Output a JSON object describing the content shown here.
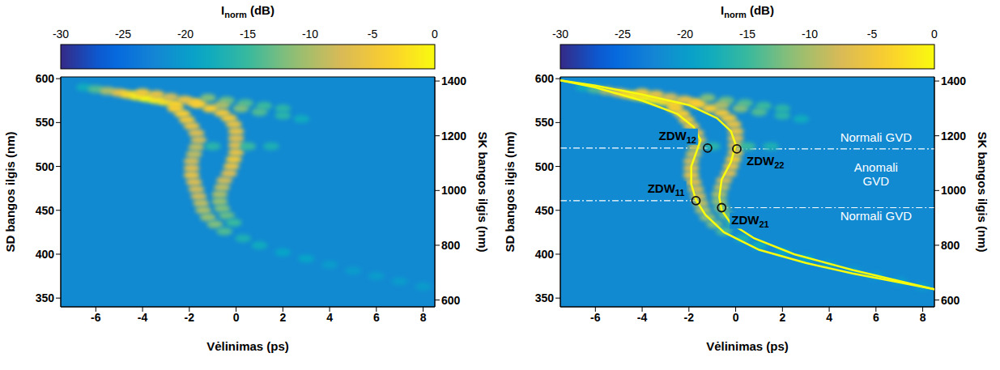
{
  "chart_data": [
    {
      "type": "heatmap",
      "x_label": "Vėlinimas (ps)",
      "y_label": "SD bangos ilgis (nm)",
      "y2_label": "SK bangos ilgis (nm)",
      "xlim": [
        -7.5,
        8.5
      ],
      "xticks": [
        -6,
        -4,
        -2,
        0,
        2,
        4,
        6,
        8
      ],
      "ylim": [
        340,
        602
      ],
      "yticks": [
        350,
        400,
        450,
        500,
        550,
        600
      ],
      "y2lim": [
        575,
        1415
      ],
      "y2ticks": [
        600,
        800,
        1000,
        1200,
        1400
      ],
      "colorbar": {
        "label": {
          "text": "I",
          "subscript": "norm",
          "unit": "(dB)"
        },
        "range": [
          -30,
          0
        ],
        "ticks": [
          -30,
          -25,
          -20,
          -15,
          -10,
          -5,
          0
        ]
      },
      "background": -22,
      "cells": [
        [
          -6.5,
          590,
          -18
        ],
        [
          -6,
          588,
          -14
        ],
        [
          -5.5,
          586,
          -10
        ],
        [
          -5,
          584,
          -6
        ],
        [
          -4.6,
          582,
          -3
        ],
        [
          -4.2,
          580,
          -1
        ],
        [
          -3.8,
          578,
          0
        ],
        [
          -3.4,
          576,
          -1
        ],
        [
          -3,
          574,
          -2
        ],
        [
          -2.6,
          571,
          -3
        ],
        [
          -4,
          584,
          -5
        ],
        [
          -3.4,
          582,
          -6
        ],
        [
          -2.8,
          579,
          -8
        ],
        [
          -2.2,
          576,
          -6
        ],
        [
          -1.8,
          573,
          -5
        ],
        [
          -1.2,
          578,
          -12
        ],
        [
          -0.4,
          575,
          -13
        ],
        [
          0.4,
          572,
          -14
        ],
        [
          1.2,
          569,
          -15
        ],
        [
          2,
          566,
          -16
        ],
        [
          -0.6,
          570,
          -10
        ],
        [
          0.2,
          566,
          -12
        ],
        [
          1,
          562,
          -14
        ],
        [
          2,
          558,
          -16
        ],
        [
          2.8,
          554,
          -18
        ],
        [
          -2.6,
          566,
          -4
        ],
        [
          -2.3,
          560,
          -4
        ],
        [
          -2.1,
          553,
          -5
        ],
        [
          -1.9,
          546,
          -6
        ],
        [
          -1.7,
          538,
          -7
        ],
        [
          -1.6,
          530,
          -8
        ],
        [
          -1.7,
          522,
          -9
        ],
        [
          -1.8,
          514,
          -9
        ],
        [
          -1.9,
          506,
          -8
        ],
        [
          -1.9,
          498,
          -7
        ],
        [
          -1.9,
          490,
          -6
        ],
        [
          -1.8,
          482,
          -7
        ],
        [
          -1.7,
          474,
          -8
        ],
        [
          -1.6,
          466,
          -8
        ],
        [
          -1.5,
          458,
          -9
        ],
        [
          -1.4,
          450,
          -10
        ],
        [
          -1.2,
          442,
          -11
        ],
        [
          -0.9,
          434,
          -12
        ],
        [
          -0.5,
          426,
          -14
        ],
        [
          -1.6,
          571,
          -4
        ],
        [
          -1.1,
          566,
          -4
        ],
        [
          -0.6,
          561,
          -5
        ],
        [
          -0.3,
          555,
          -5
        ],
        [
          -0.1,
          548,
          -6
        ],
        [
          0,
          540,
          -6
        ],
        [
          0,
          532,
          -7
        ],
        [
          0,
          524,
          -7
        ],
        [
          0,
          516,
          -6
        ],
        [
          -0.1,
          508,
          -5
        ],
        [
          -0.2,
          500,
          -6
        ],
        [
          -0.3,
          492,
          -7
        ],
        [
          -0.5,
          484,
          -8
        ],
        [
          -0.6,
          476,
          -9
        ],
        [
          -0.7,
          468,
          -10
        ],
        [
          -0.7,
          460,
          -11
        ],
        [
          -0.6,
          452,
          -12
        ],
        [
          -0.4,
          444,
          -13
        ],
        [
          -0.1,
          436,
          -15
        ],
        [
          -1,
          523,
          -16
        ],
        [
          0.5,
          523,
          -15
        ],
        [
          1.5,
          523,
          -17
        ],
        [
          0.3,
          418,
          -17
        ],
        [
          1,
          410,
          -18
        ],
        [
          2,
          402,
          -19
        ],
        [
          3,
          395,
          -19
        ],
        [
          4,
          388,
          -20
        ],
        [
          5,
          381,
          -20
        ],
        [
          6,
          375,
          -20
        ],
        [
          7,
          369,
          -20
        ],
        [
          8,
          363,
          -20
        ]
      ]
    },
    {
      "type": "heatmap",
      "x_label": "Vėlinimas (ps)",
      "y_label": "SD bangos ilgis (nm)",
      "y2_label": "SK bangos ilgis (nm)",
      "xlim": [
        -7.5,
        8.5
      ],
      "xticks": [
        -6,
        -4,
        -2,
        0,
        2,
        4,
        6,
        8
      ],
      "ylim": [
        340,
        602
      ],
      "yticks": [
        350,
        400,
        450,
        500,
        550,
        600
      ],
      "y2lim": [
        575,
        1415
      ],
      "y2ticks": [
        600,
        800,
        1000,
        1200,
        1400
      ],
      "colorbar": {
        "label": {
          "text": "I",
          "subscript": "norm",
          "unit": "(dB)"
        },
        "range": [
          -30,
          0
        ],
        "ticks": [
          -30,
          -25,
          -20,
          -15,
          -10,
          -5,
          0
        ]
      },
      "background": -22,
      "cells": [
        [
          -6.5,
          590,
          -18
        ],
        [
          -6,
          588,
          -14
        ],
        [
          -5.5,
          586,
          -10
        ],
        [
          -5,
          584,
          -6
        ],
        [
          -4.6,
          582,
          -3
        ],
        [
          -4.2,
          580,
          -1
        ],
        [
          -3.8,
          578,
          0
        ],
        [
          -3.4,
          576,
          -1
        ],
        [
          -3,
          574,
          -2
        ],
        [
          -2.6,
          571,
          -3
        ],
        [
          -4,
          584,
          -5
        ],
        [
          -3.4,
          582,
          -6
        ],
        [
          -2.8,
          579,
          -8
        ],
        [
          -2.2,
          576,
          -6
        ],
        [
          -1.8,
          573,
          -5
        ],
        [
          -1.2,
          578,
          -12
        ],
        [
          -0.4,
          575,
          -13
        ],
        [
          0.4,
          572,
          -14
        ],
        [
          1.2,
          569,
          -15
        ],
        [
          2,
          566,
          -16
        ],
        [
          -0.6,
          570,
          -10
        ],
        [
          0.2,
          566,
          -12
        ],
        [
          1,
          562,
          -14
        ],
        [
          2,
          558,
          -16
        ],
        [
          2.8,
          554,
          -18
        ],
        [
          -2.6,
          566,
          -4
        ],
        [
          -2.3,
          560,
          -4
        ],
        [
          -2.1,
          553,
          -5
        ],
        [
          -1.9,
          546,
          -6
        ],
        [
          -1.7,
          538,
          -7
        ],
        [
          -1.6,
          530,
          -8
        ],
        [
          -1.7,
          522,
          -9
        ],
        [
          -1.8,
          514,
          -9
        ],
        [
          -1.9,
          506,
          -8
        ],
        [
          -1.9,
          498,
          -7
        ],
        [
          -1.9,
          490,
          -6
        ],
        [
          -1.8,
          482,
          -7
        ],
        [
          -1.7,
          474,
          -8
        ],
        [
          -1.6,
          466,
          -8
        ],
        [
          -1.5,
          458,
          -9
        ],
        [
          -1.4,
          450,
          -10
        ],
        [
          -1.2,
          442,
          -11
        ],
        [
          -0.9,
          434,
          -12
        ],
        [
          -0.5,
          426,
          -14
        ],
        [
          -1.6,
          571,
          -4
        ],
        [
          -1.1,
          566,
          -4
        ],
        [
          -0.6,
          561,
          -5
        ],
        [
          -0.3,
          555,
          -5
        ],
        [
          -0.1,
          548,
          -6
        ],
        [
          0,
          540,
          -6
        ],
        [
          0,
          532,
          -7
        ],
        [
          0,
          524,
          -7
        ],
        [
          0,
          516,
          -6
        ],
        [
          -0.1,
          508,
          -5
        ],
        [
          -0.2,
          500,
          -6
        ],
        [
          -0.3,
          492,
          -7
        ],
        [
          -0.5,
          484,
          -8
        ],
        [
          -0.6,
          476,
          -9
        ],
        [
          -0.7,
          468,
          -10
        ],
        [
          -0.7,
          460,
          -11
        ],
        [
          -0.6,
          452,
          -12
        ],
        [
          -0.4,
          444,
          -13
        ],
        [
          -0.1,
          436,
          -15
        ],
        [
          -1,
          523,
          -16
        ],
        [
          0.5,
          523,
          -15
        ],
        [
          1.5,
          523,
          -17
        ],
        [
          0.3,
          418,
          -17
        ],
        [
          1,
          410,
          -18
        ],
        [
          2,
          402,
          -19
        ],
        [
          3,
          395,
          -19
        ],
        [
          4,
          388,
          -20
        ],
        [
          5,
          381,
          -20
        ],
        [
          6,
          375,
          -20
        ],
        [
          7,
          369,
          -20
        ],
        [
          8,
          363,
          -20
        ]
      ],
      "series": [
        {
          "type": "line",
          "color": "#f9fb0e",
          "x": [
            -7.5,
            -6,
            -4,
            -2.5,
            -1.8,
            -1.5,
            -1.7,
            -1.9,
            -1.9,
            -1.7,
            -1.3,
            -0.5,
            1,
            3,
            5,
            7,
            8.5
          ],
          "values": [
            598,
            590,
            575,
            560,
            545,
            530,
            515,
            500,
            480,
            462,
            445,
            425,
            405,
            390,
            378,
            368,
            360
          ]
        },
        {
          "type": "line",
          "color": "#f9fb0e",
          "x": [
            -7.5,
            -6,
            -4,
            -2,
            -0.8,
            -0.2,
            0,
            -0.2,
            -0.6,
            -0.7,
            -0.6,
            -0.2,
            0.8,
            2.5,
            5,
            8.5
          ],
          "values": [
            598,
            592,
            582,
            570,
            555,
            540,
            525,
            505,
            485,
            465,
            450,
            435,
            418,
            400,
            382,
            360
          ]
        }
      ],
      "points": [
        {
          "label": "ZDW",
          "sub": "12",
          "x": -1.2,
          "y": 521
        },
        {
          "label": "ZDW",
          "sub": "22",
          "x": 0.05,
          "y": 520
        },
        {
          "label": "ZDW",
          "sub": "11",
          "x": -1.7,
          "y": 461
        },
        {
          "label": "ZDW",
          "sub": "21",
          "x": -0.6,
          "y": 453
        }
      ],
      "annotations": [
        {
          "text": [
            "Normali GVD"
          ],
          "x": 6,
          "y": 532
        },
        {
          "text": [
            "Anomali",
            "GVD"
          ],
          "x": 6,
          "y": 490
        },
        {
          "text": [
            "Normali GVD"
          ],
          "x": 6,
          "y": 442
        }
      ]
    }
  ]
}
